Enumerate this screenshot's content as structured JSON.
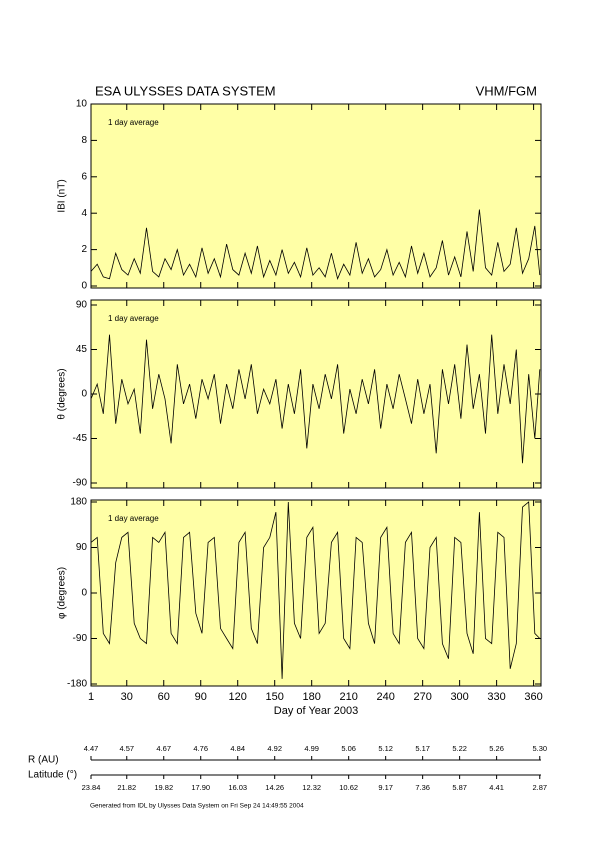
{
  "header": {
    "title": "ESA ULYSSES DATA SYSTEM",
    "instrument": "VHM/FGM"
  },
  "chart_data": [
    {
      "type": "line",
      "ylabel": "IBI (nT)",
      "annotation": "1 day average",
      "color": "#000000",
      "x": [
        1,
        6,
        11,
        16,
        21,
        26,
        31,
        36,
        41,
        46,
        51,
        56,
        61,
        66,
        71,
        76,
        81,
        86,
        91,
        96,
        101,
        106,
        111,
        116,
        121,
        126,
        131,
        136,
        141,
        146,
        151,
        156,
        161,
        166,
        171,
        176,
        181,
        186,
        191,
        196,
        201,
        206,
        211,
        216,
        221,
        226,
        231,
        236,
        241,
        246,
        251,
        256,
        261,
        266,
        271,
        276,
        281,
        286,
        291,
        296,
        301,
        306,
        311,
        316,
        321,
        326,
        331,
        336,
        341,
        346,
        351,
        356,
        361,
        365
      ],
      "values": [
        0.8,
        1.2,
        0.5,
        0.4,
        1.8,
        0.9,
        0.6,
        1.5,
        0.7,
        3.2,
        0.8,
        0.5,
        1.5,
        0.9,
        2.0,
        0.6,
        1.2,
        0.5,
        2.1,
        0.7,
        1.5,
        0.5,
        2.3,
        0.9,
        0.6,
        1.8,
        0.7,
        2.2,
        0.5,
        1.4,
        0.6,
        2.0,
        0.7,
        1.3,
        0.5,
        2.1,
        0.6,
        1.0,
        0.5,
        1.8,
        0.4,
        1.2,
        0.6,
        2.4,
        0.7,
        1.5,
        0.5,
        0.9,
        2.0,
        0.6,
        1.3,
        0.5,
        2.2,
        0.7,
        1.8,
        0.5,
        1.0,
        2.5,
        0.6,
        1.6,
        0.5,
        3.0,
        0.8,
        4.2,
        1.0,
        0.6,
        2.4,
        0.8,
        1.2,
        3.2,
        0.7,
        1.5,
        3.3,
        0.6
      ],
      "xlim": [
        1,
        366
      ],
      "xticks": [
        1,
        30,
        60,
        90,
        120,
        150,
        180,
        210,
        240,
        270,
        300,
        330,
        360
      ],
      "xtick_labels": false,
      "ylim": [
        0,
        10
      ],
      "yticks": [
        0,
        2,
        4,
        6,
        8,
        10
      ]
    },
    {
      "type": "line",
      "ylabel": "θ (degrees)",
      "annotation": "1 day average",
      "color": "#000000",
      "x": [
        1,
        6,
        11,
        16,
        21,
        26,
        31,
        36,
        41,
        46,
        51,
        56,
        61,
        66,
        71,
        76,
        81,
        86,
        91,
        96,
        101,
        106,
        111,
        116,
        121,
        126,
        131,
        136,
        141,
        146,
        151,
        156,
        161,
        166,
        171,
        176,
        181,
        186,
        191,
        196,
        201,
        206,
        211,
        216,
        221,
        226,
        231,
        236,
        241,
        246,
        251,
        256,
        261,
        266,
        271,
        276,
        281,
        286,
        291,
        296,
        301,
        306,
        311,
        316,
        321,
        326,
        331,
        336,
        341,
        346,
        351,
        356,
        361,
        365
      ],
      "values": [
        -5,
        10,
        -20,
        60,
        -30,
        15,
        -10,
        5,
        -40,
        55,
        -15,
        20,
        -5,
        -50,
        30,
        -10,
        10,
        -25,
        15,
        -5,
        20,
        -30,
        10,
        -15,
        25,
        -5,
        30,
        -20,
        5,
        -10,
        15,
        -35,
        10,
        -20,
        25,
        -55,
        10,
        -15,
        20,
        -5,
        30,
        -40,
        5,
        -20,
        15,
        -10,
        25,
        -35,
        10,
        -15,
        20,
        -5,
        -30,
        15,
        -20,
        10,
        -60,
        25,
        -10,
        30,
        -25,
        50,
        -15,
        20,
        -40,
        60,
        -20,
        30,
        -10,
        45,
        -70,
        20,
        -45,
        25
      ],
      "xlim": [
        1,
        366
      ],
      "xticks": [
        1,
        30,
        60,
        90,
        120,
        150,
        180,
        210,
        240,
        270,
        300,
        330,
        360
      ],
      "xtick_labels": false,
      "ylim": [
        -90,
        90
      ],
      "yticks": [
        -90,
        -45,
        0,
        45,
        90
      ]
    },
    {
      "type": "line",
      "ylabel": "φ (degrees)",
      "annotation": "1 day average",
      "xlabel": "Day of Year 2003",
      "color": "#000000",
      "x": [
        1,
        6,
        11,
        16,
        21,
        26,
        31,
        36,
        41,
        46,
        51,
        56,
        61,
        66,
        71,
        76,
        81,
        86,
        91,
        96,
        101,
        106,
        111,
        116,
        121,
        126,
        131,
        136,
        141,
        146,
        151,
        156,
        161,
        166,
        171,
        176,
        181,
        186,
        191,
        196,
        201,
        206,
        211,
        216,
        221,
        226,
        231,
        236,
        241,
        246,
        251,
        256,
        261,
        266,
        271,
        276,
        281,
        286,
        291,
        296,
        301,
        306,
        311,
        316,
        321,
        326,
        331,
        336,
        341,
        346,
        351,
        356,
        361,
        365
      ],
      "values": [
        100,
        110,
        -80,
        -100,
        60,
        110,
        120,
        -60,
        -90,
        -100,
        110,
        100,
        120,
        -80,
        -100,
        110,
        120,
        -40,
        -80,
        100,
        110,
        -70,
        -90,
        -110,
        100,
        120,
        -70,
        -100,
        90,
        110,
        160,
        -170,
        180,
        -60,
        -90,
        110,
        130,
        -80,
        -60,
        100,
        120,
        -90,
        -110,
        110,
        100,
        -60,
        -100,
        110,
        130,
        -80,
        -100,
        100,
        120,
        -90,
        -110,
        90,
        110,
        -100,
        -130,
        110,
        100,
        -80,
        -120,
        160,
        -90,
        -100,
        120,
        110,
        -150,
        -100,
        170,
        180,
        -80,
        -90
      ],
      "xlim": [
        1,
        366
      ],
      "xticks": [
        1,
        30,
        60,
        90,
        120,
        150,
        180,
        210,
        240,
        270,
        300,
        330,
        360
      ],
      "xtick_labels": true,
      "ylim": [
        -180,
        180
      ],
      "yticks": [
        -180,
        -90,
        0,
        90,
        180
      ]
    }
  ],
  "ephemeris": {
    "days": [
      1,
      30,
      60,
      90,
      120,
      150,
      180,
      210,
      240,
      270,
      300,
      330,
      365
    ],
    "rows": [
      {
        "label": "R (AU)",
        "values": [
          "4.47",
          "4.57",
          "4.67",
          "4.76",
          "4.84",
          "4.92",
          "4.99",
          "5.06",
          "5.12",
          "5.17",
          "5.22",
          "5.26",
          "5.30"
        ]
      },
      {
        "label": "Latitude (°)",
        "values": [
          "23.84",
          "21.82",
          "19.82",
          "17.90",
          "16.03",
          "14.26",
          "12.32",
          "10.62",
          "9.17",
          "7.36",
          "5.87",
          "4.41",
          "2.87"
        ]
      }
    ]
  },
  "footer": "Generated from IDL by Ulysses Data System on Fri Sep 24 14:49:55 2004"
}
